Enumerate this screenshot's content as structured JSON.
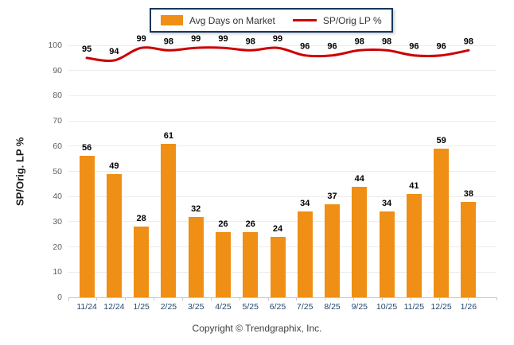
{
  "legend": {
    "bar_label": "Avg Days on Market",
    "line_label": "SP/Orig LP %"
  },
  "footer": {
    "copyright": "Copyright © Trendgraphix, Inc."
  },
  "colors": {
    "bar": "#EF8F15",
    "line": "#CC0000",
    "grid": "#ECECEC",
    "axis": "#C8C8C8",
    "x_tick_label": "#25476A",
    "y_tick_label": "#5F5F5F",
    "data_label": "#000000",
    "legend_border": "#17375D",
    "legend_text": "#333333",
    "axis_title": "#1A1A1A",
    "footer_text": "#404040"
  },
  "chart_data": {
    "type": "bar",
    "title": "",
    "xlabel": "",
    "ylabel": "SP/Orig. LP %",
    "ylim": [
      0,
      100
    ],
    "ytick_step": 10,
    "grid": true,
    "legend_position": "top-center",
    "categories": [
      "11/24",
      "12/24",
      "1/25",
      "2/25",
      "3/25",
      "4/25",
      "5/25",
      "6/25",
      "7/25",
      "8/25",
      "9/25",
      "10/25",
      "11/25",
      "12/25",
      "1/26"
    ],
    "series": [
      {
        "name": "Avg Days on Market",
        "type": "bar",
        "values": [
          56,
          49,
          28,
          61,
          32,
          26,
          26,
          24,
          34,
          37,
          44,
          34,
          41,
          59,
          38
        ]
      },
      {
        "name": "SP/Orig LP %",
        "type": "line",
        "values": [
          95,
          94,
          99,
          98,
          99,
          99,
          98,
          99,
          96,
          96,
          98,
          98,
          96,
          96,
          98
        ]
      }
    ]
  }
}
